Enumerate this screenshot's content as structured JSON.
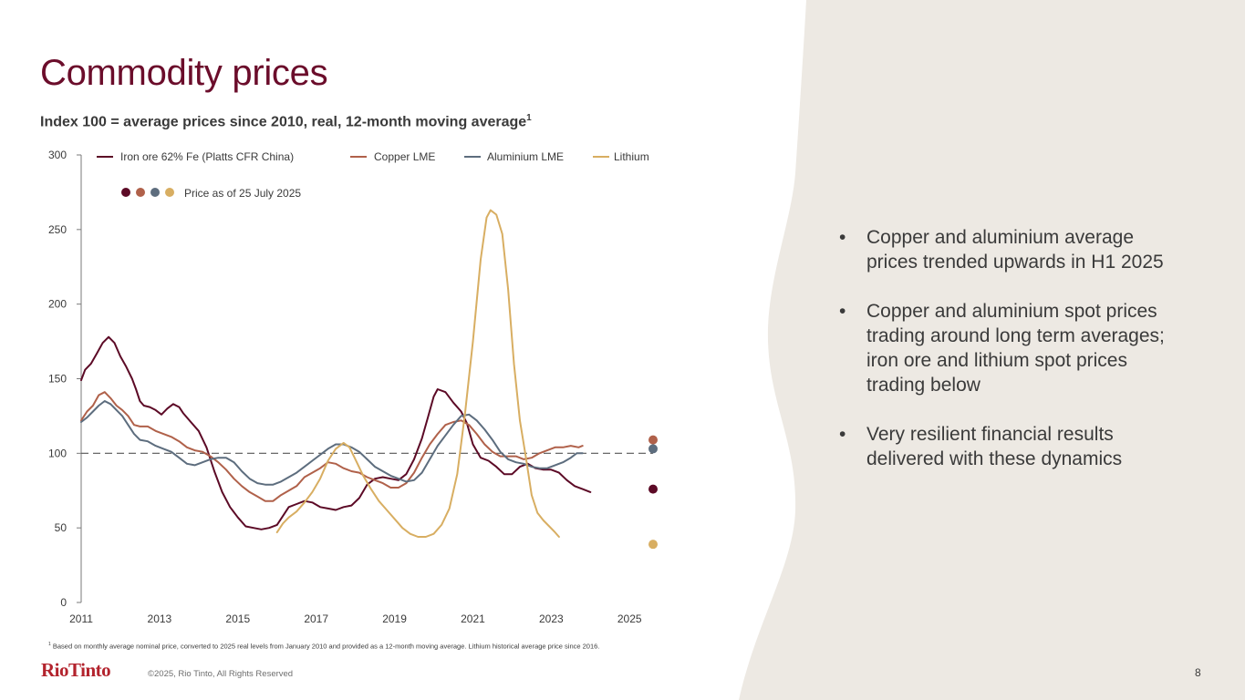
{
  "slide": {
    "title": "Commodity prices",
    "subtitle": "Index 100 = average prices since 2010, real, 12-month moving average",
    "subtitle_sup": "1",
    "bullets": [
      "Copper and aluminium average prices trended upwards in H1 2025",
      "Copper and aluminium spot prices trading around long term averages; iron ore and lithium spot prices trading below",
      "Very resilient financial results delivered with these dynamics"
    ],
    "footnote_sup": "1",
    "footnote": "Based on monthly average nominal price, converted to 2025 real levels from January 2010 and provided as a 12-month moving average. Lithium historical average price since 2016.",
    "logo": "RioTinto",
    "copyright": "©2025, Rio Tinto, All Rights Reserved",
    "page_number": "8",
    "bullet_char": "•"
  },
  "chart_data": {
    "type": "line",
    "title": "",
    "xlabel": "",
    "ylabel": "",
    "xlim": [
      2011,
      2025.6
    ],
    "ylim": [
      0,
      300
    ],
    "y_ticks": [
      0,
      50,
      100,
      150,
      200,
      250,
      300
    ],
    "x_ticks": [
      2011,
      2013,
      2015,
      2017,
      2019,
      2021,
      2023,
      2025
    ],
    "reference_line": 100,
    "grid": false,
    "legend_position": "top-left",
    "spot_legend_label": "Price as of 25 July 2025",
    "series": [
      {
        "name": "Iron ore 62% Fe (Platts CFR China)",
        "color": "#5c0a26",
        "points": [
          [
            2011.0,
            149
          ],
          [
            2011.1,
            156
          ],
          [
            2011.25,
            160
          ],
          [
            2011.4,
            167
          ],
          [
            2011.55,
            174
          ],
          [
            2011.7,
            178
          ],
          [
            2011.85,
            174
          ],
          [
            2012.0,
            165
          ],
          [
            2012.15,
            158
          ],
          [
            2012.3,
            150
          ],
          [
            2012.4,
            143
          ],
          [
            2012.5,
            135
          ],
          [
            2012.6,
            132
          ],
          [
            2012.75,
            131
          ],
          [
            2012.9,
            129
          ],
          [
            2013.05,
            126
          ],
          [
            2013.2,
            130
          ],
          [
            2013.35,
            133
          ],
          [
            2013.5,
            131
          ],
          [
            2013.6,
            127
          ],
          [
            2013.8,
            121
          ],
          [
            2014.0,
            115
          ],
          [
            2014.2,
            104
          ],
          [
            2014.4,
            88
          ],
          [
            2014.6,
            74
          ],
          [
            2014.8,
            64
          ],
          [
            2015.0,
            57
          ],
          [
            2015.2,
            51
          ],
          [
            2015.4,
            50
          ],
          [
            2015.6,
            49
          ],
          [
            2015.8,
            50
          ],
          [
            2016.0,
            52
          ],
          [
            2016.15,
            58
          ],
          [
            2016.3,
            64
          ],
          [
            2016.5,
            66
          ],
          [
            2016.7,
            68
          ],
          [
            2016.9,
            67
          ],
          [
            2017.1,
            64
          ],
          [
            2017.3,
            63
          ],
          [
            2017.5,
            62
          ],
          [
            2017.7,
            64
          ],
          [
            2017.9,
            65
          ],
          [
            2018.1,
            70
          ],
          [
            2018.3,
            79
          ],
          [
            2018.5,
            83
          ],
          [
            2018.7,
            84
          ],
          [
            2018.9,
            83
          ],
          [
            2019.1,
            82
          ],
          [
            2019.3,
            86
          ],
          [
            2019.5,
            96
          ],
          [
            2019.7,
            110
          ],
          [
            2019.85,
            124
          ],
          [
            2020.0,
            138
          ],
          [
            2020.1,
            143
          ],
          [
            2020.3,
            141
          ],
          [
            2020.5,
            134
          ],
          [
            2020.7,
            128
          ],
          [
            2020.85,
            120
          ],
          [
            2021.0,
            106
          ],
          [
            2021.2,
            97
          ],
          [
            2021.4,
            95
          ],
          [
            2021.6,
            91
          ],
          [
            2021.8,
            86
          ],
          [
            2022.0,
            86
          ],
          [
            2022.2,
            91
          ],
          [
            2022.4,
            93
          ],
          [
            2022.6,
            90
          ],
          [
            2022.8,
            89
          ],
          [
            2023.0,
            89
          ],
          [
            2023.2,
            87
          ],
          [
            2023.4,
            82
          ],
          [
            2023.6,
            78
          ],
          [
            2023.8,
            76
          ],
          [
            2024.0,
            74
          ]
        ]
      },
      {
        "name": "Copper LME",
        "color": "#b0614a",
        "points": [
          [
            2011.0,
            122
          ],
          [
            2011.15,
            128
          ],
          [
            2011.3,
            132
          ],
          [
            2011.45,
            139
          ],
          [
            2011.6,
            141
          ],
          [
            2011.75,
            137
          ],
          [
            2011.9,
            132
          ],
          [
            2012.05,
            129
          ],
          [
            2012.2,
            125
          ],
          [
            2012.35,
            119
          ],
          [
            2012.5,
            118
          ],
          [
            2012.7,
            118
          ],
          [
            2012.9,
            115
          ],
          [
            2013.1,
            113
          ],
          [
            2013.3,
            111
          ],
          [
            2013.5,
            108
          ],
          [
            2013.7,
            104
          ],
          [
            2013.9,
            102
          ],
          [
            2014.1,
            101
          ],
          [
            2014.3,
            98
          ],
          [
            2014.5,
            94
          ],
          [
            2014.7,
            89
          ],
          [
            2014.9,
            83
          ],
          [
            2015.1,
            78
          ],
          [
            2015.3,
            74
          ],
          [
            2015.5,
            71
          ],
          [
            2015.7,
            68
          ],
          [
            2015.9,
            68
          ],
          [
            2016.1,
            72
          ],
          [
            2016.3,
            75
          ],
          [
            2016.5,
            78
          ],
          [
            2016.7,
            84
          ],
          [
            2016.9,
            87
          ],
          [
            2017.1,
            90
          ],
          [
            2017.3,
            94
          ],
          [
            2017.5,
            93
          ],
          [
            2017.7,
            90
          ],
          [
            2017.9,
            88
          ],
          [
            2018.1,
            87
          ],
          [
            2018.3,
            84
          ],
          [
            2018.5,
            82
          ],
          [
            2018.7,
            80
          ],
          [
            2018.9,
            77
          ],
          [
            2019.1,
            77
          ],
          [
            2019.3,
            80
          ],
          [
            2019.5,
            87
          ],
          [
            2019.7,
            97
          ],
          [
            2019.9,
            106
          ],
          [
            2020.1,
            113
          ],
          [
            2020.3,
            119
          ],
          [
            2020.5,
            121
          ],
          [
            2020.7,
            122
          ],
          [
            2020.9,
            119
          ],
          [
            2021.1,
            113
          ],
          [
            2021.3,
            106
          ],
          [
            2021.5,
            101
          ],
          [
            2021.7,
            98
          ],
          [
            2021.9,
            98
          ],
          [
            2022.1,
            98
          ],
          [
            2022.3,
            96
          ],
          [
            2022.5,
            97
          ],
          [
            2022.7,
            100
          ],
          [
            2022.9,
            102
          ],
          [
            2023.1,
            104
          ],
          [
            2023.3,
            104
          ],
          [
            2023.5,
            105
          ],
          [
            2023.7,
            104
          ],
          [
            2023.8,
            105
          ]
        ]
      },
      {
        "name": "Aluminium LME",
        "color": "#5d6d7e",
        "points": [
          [
            2011.0,
            121
          ],
          [
            2011.15,
            124
          ],
          [
            2011.3,
            128
          ],
          [
            2011.45,
            132
          ],
          [
            2011.6,
            135
          ],
          [
            2011.75,
            133
          ],
          [
            2011.9,
            129
          ],
          [
            2012.05,
            125
          ],
          [
            2012.2,
            119
          ],
          [
            2012.35,
            113
          ],
          [
            2012.5,
            109
          ],
          [
            2012.7,
            108
          ],
          [
            2012.9,
            105
          ],
          [
            2013.1,
            103
          ],
          [
            2013.3,
            101
          ],
          [
            2013.5,
            97
          ],
          [
            2013.7,
            93
          ],
          [
            2013.9,
            92
          ],
          [
            2014.1,
            94
          ],
          [
            2014.3,
            96
          ],
          [
            2014.5,
            97
          ],
          [
            2014.7,
            97
          ],
          [
            2014.9,
            94
          ],
          [
            2015.1,
            88
          ],
          [
            2015.3,
            83
          ],
          [
            2015.5,
            80
          ],
          [
            2015.7,
            79
          ],
          [
            2015.9,
            79
          ],
          [
            2016.1,
            81
          ],
          [
            2016.3,
            84
          ],
          [
            2016.5,
            87
          ],
          [
            2016.7,
            91
          ],
          [
            2016.9,
            95
          ],
          [
            2017.1,
            99
          ],
          [
            2017.3,
            103
          ],
          [
            2017.5,
            106
          ],
          [
            2017.7,
            106
          ],
          [
            2017.9,
            104
          ],
          [
            2018.1,
            101
          ],
          [
            2018.3,
            96
          ],
          [
            2018.5,
            91
          ],
          [
            2018.7,
            88
          ],
          [
            2018.9,
            85
          ],
          [
            2019.1,
            83
          ],
          [
            2019.3,
            81
          ],
          [
            2019.5,
            82
          ],
          [
            2019.7,
            87
          ],
          [
            2019.9,
            96
          ],
          [
            2020.1,
            105
          ],
          [
            2020.3,
            112
          ],
          [
            2020.5,
            119
          ],
          [
            2020.7,
            125
          ],
          [
            2020.9,
            126
          ],
          [
            2021.1,
            122
          ],
          [
            2021.3,
            116
          ],
          [
            2021.5,
            109
          ],
          [
            2021.7,
            101
          ],
          [
            2021.9,
            96
          ],
          [
            2022.1,
            94
          ],
          [
            2022.3,
            93
          ],
          [
            2022.5,
            91
          ],
          [
            2022.7,
            90
          ],
          [
            2022.9,
            90
          ],
          [
            2023.1,
            92
          ],
          [
            2023.3,
            94
          ],
          [
            2023.5,
            97
          ],
          [
            2023.65,
            100
          ],
          [
            2023.8,
            100
          ]
        ]
      },
      {
        "name": "Lithium",
        "color": "#d8ae62",
        "points": [
          [
            2016.0,
            47
          ],
          [
            2016.15,
            53
          ],
          [
            2016.3,
            57
          ],
          [
            2016.5,
            61
          ],
          [
            2016.7,
            67
          ],
          [
            2016.9,
            74
          ],
          [
            2017.1,
            83
          ],
          [
            2017.3,
            95
          ],
          [
            2017.5,
            103
          ],
          [
            2017.7,
            107
          ],
          [
            2017.85,
            104
          ],
          [
            2018.0,
            96
          ],
          [
            2018.2,
            85
          ],
          [
            2018.4,
            76
          ],
          [
            2018.6,
            68
          ],
          [
            2018.8,
            62
          ],
          [
            2019.0,
            56
          ],
          [
            2019.2,
            50
          ],
          [
            2019.4,
            46
          ],
          [
            2019.6,
            44
          ],
          [
            2019.8,
            44
          ],
          [
            2020.0,
            46
          ],
          [
            2020.2,
            52
          ],
          [
            2020.4,
            63
          ],
          [
            2020.6,
            86
          ],
          [
            2020.8,
            127
          ],
          [
            2021.0,
            175
          ],
          [
            2021.2,
            230
          ],
          [
            2021.35,
            258
          ],
          [
            2021.45,
            263
          ],
          [
            2021.6,
            260
          ],
          [
            2021.75,
            247
          ],
          [
            2021.9,
            210
          ],
          [
            2022.05,
            160
          ],
          [
            2022.2,
            122
          ],
          [
            2022.35,
            98
          ],
          [
            2022.5,
            72
          ],
          [
            2022.65,
            60
          ],
          [
            2022.8,
            55
          ],
          [
            2022.95,
            51
          ],
          [
            2023.1,
            47
          ],
          [
            2023.2,
            44
          ]
        ]
      }
    ],
    "spot_prices": [
      {
        "name": "Iron ore 62% Fe (Platts CFR China)",
        "color": "#5c0a26",
        "x": 2025.6,
        "y": 76
      },
      {
        "name": "Copper LME",
        "color": "#b0614a",
        "x": 2025.6,
        "y": 109
      },
      {
        "name": "Aluminium LME",
        "color": "#5d6d7e",
        "x": 2025.6,
        "y": 103
      },
      {
        "name": "Lithium",
        "color": "#d8ae62",
        "x": 2025.6,
        "y": 39
      }
    ]
  }
}
